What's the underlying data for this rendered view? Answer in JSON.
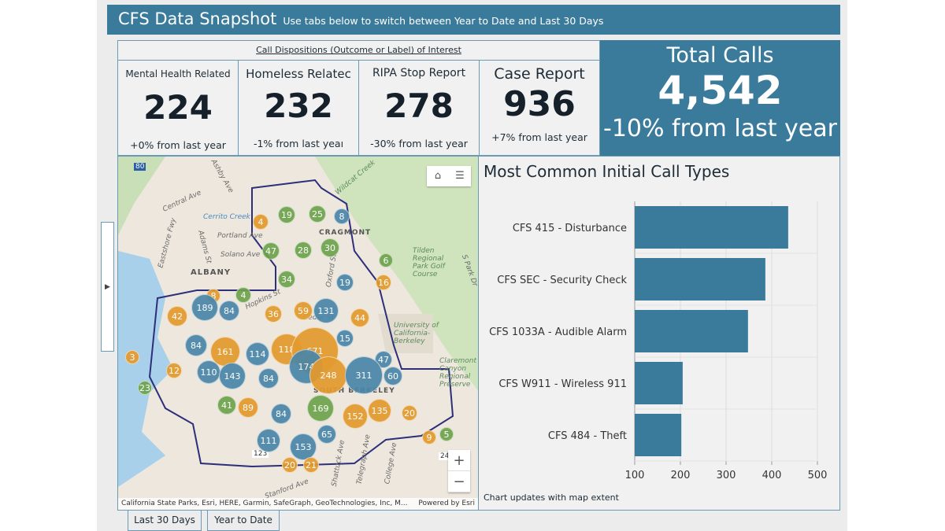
{
  "header": {
    "title": "CFS Data Snapshot",
    "subtitle": "Use tabs below to switch between Year to Date and Last 30 Days"
  },
  "dispositions": {
    "caption": "Call Dispositions (Outcome or Label) of Interest",
    "cards": [
      {
        "label": "Mental Health Related",
        "value": "224",
        "change": "+0% from last year"
      },
      {
        "label": "Homeless Relatec",
        "value": "232",
        "change": "-1% from last yeaı"
      },
      {
        "label": "RIPA Stop Report",
        "value": "278",
        "change": "-30% from last year"
      },
      {
        "label": "Case Report",
        "value": "936",
        "change": "+7% from last year"
      }
    ]
  },
  "total": {
    "label": "Total Calls",
    "value": "4,542",
    "change": "-10% from last year"
  },
  "map": {
    "labels": [
      "Ashby Ave",
      "Central Ave",
      "Cerrito Creek",
      "Portland Ave",
      "Solano Ave",
      "ALBANY",
      "CRAGMONT",
      "Tilden Regional Park Golf Course",
      "University of California-Berkeley",
      "Claremont Canyon Regional Preserve",
      "SOUTH BERKELEY",
      "Hopkins St",
      "Cedar St",
      "Wildcat Creek",
      "Telegraph Ave",
      "Shattuck Ave",
      "Stanford Ave",
      "College Ave",
      "Eastshore Fwy",
      "Adams St",
      "Oxford St",
      "S Park Dr"
    ],
    "clusters": [
      "4",
      "19",
      "25",
      "8",
      "47",
      "28",
      "30",
      "6",
      "34",
      "19",
      "16",
      "8",
      "4",
      "189",
      "84",
      "59",
      "131",
      "36",
      "44",
      "42",
      "15",
      "84",
      "161",
      "114",
      "118",
      "671",
      "47",
      "3",
      "110",
      "143",
      "84",
      "174",
      "248",
      "311",
      "60",
      "12",
      "23",
      "41",
      "89",
      "84",
      "169",
      "152",
      "135",
      "20",
      "111",
      "153",
      "65",
      "9",
      "5",
      "20",
      "21"
    ],
    "attribution": "California State Parks, Esri, HERE, Garmin, SafeGraph, GeoTechnologies, Inc, M...",
    "powered": "Powered by Esri",
    "highway": "80",
    "route": "123",
    "route2": "24",
    "colors": {
      "blue": "#4a86a8",
      "orange": "#e39a2d",
      "green": "#6da34d"
    }
  },
  "chart_data": {
    "type": "bar",
    "title": "Most Common Initial Call Types",
    "orientation": "horizontal",
    "categories": [
      "CFS 415 - Disturbance",
      "CFS SEC - Security Check",
      "CFS 1033A - Audible Alarm",
      "CFS W911 - Wireless 911",
      "CFS 484 - Theft"
    ],
    "values": [
      436,
      386,
      348,
      205,
      202
    ],
    "xlim": [
      100,
      500
    ],
    "ticks": [
      "100",
      "200",
      "300",
      "400",
      "500"
    ],
    "color": "#3a7b9b",
    "grid": true
  },
  "chart_footer": "Chart updates with map extent",
  "tabs": [
    "Last 30 Days",
    "Year to Date"
  ]
}
